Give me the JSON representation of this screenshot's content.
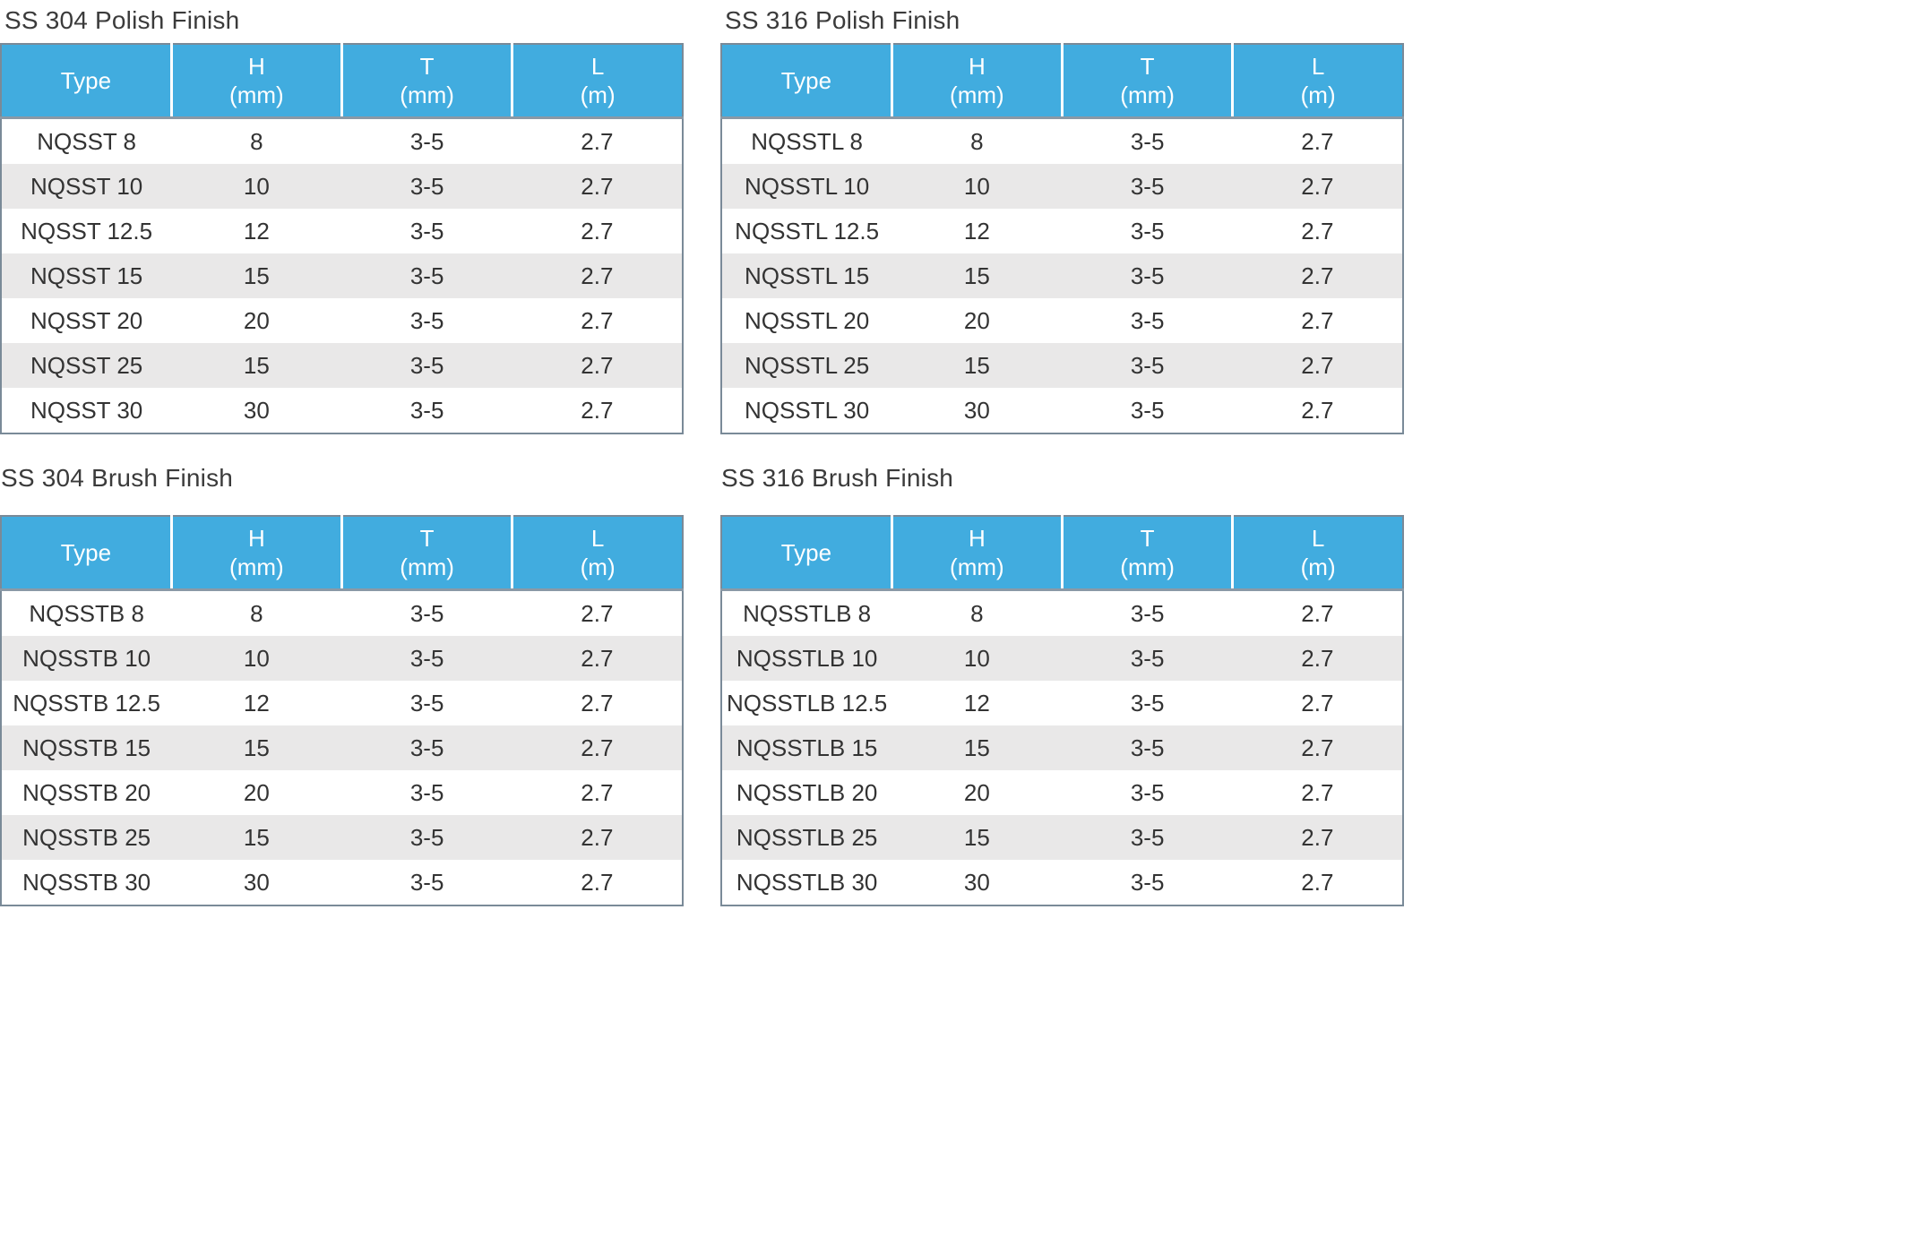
{
  "columns": {
    "type": "Type",
    "h": "H",
    "h_unit": "(mm)",
    "t": "T",
    "t_unit": "(mm)",
    "l": "L",
    "l_unit": "(m)"
  },
  "colors": {
    "header_bg": "#41acdf",
    "stripe": "#e9e8e8",
    "border": "#7a8a98"
  },
  "tables": [
    {
      "title": "SS 304 Polish Finish",
      "rows": [
        [
          "NQSST 8",
          "8",
          "3-5",
          "2.7"
        ],
        [
          "NQSST 10",
          "10",
          "3-5",
          "2.7"
        ],
        [
          "NQSST 12.5",
          "12",
          "3-5",
          "2.7"
        ],
        [
          "NQSST 15",
          "15",
          "3-5",
          "2.7"
        ],
        [
          "NQSST 20",
          "20",
          "3-5",
          "2.7"
        ],
        [
          "NQSST 25",
          "15",
          "3-5",
          "2.7"
        ],
        [
          "NQSST 30",
          "30",
          "3-5",
          "2.7"
        ]
      ]
    },
    {
      "title": "SS 316 Polish Finish",
      "rows": [
        [
          "NQSSTL 8",
          "8",
          "3-5",
          "2.7"
        ],
        [
          "NQSSTL 10",
          "10",
          "3-5",
          "2.7"
        ],
        [
          "NQSSTL 12.5",
          "12",
          "3-5",
          "2.7"
        ],
        [
          "NQSSTL 15",
          "15",
          "3-5",
          "2.7"
        ],
        [
          "NQSSTL 20",
          "20",
          "3-5",
          "2.7"
        ],
        [
          "NQSSTL 25",
          "15",
          "3-5",
          "2.7"
        ],
        [
          "NQSSTL 30",
          "30",
          "3-5",
          "2.7"
        ]
      ]
    },
    {
      "title": "SS 304 Brush Finish",
      "rows": [
        [
          "NQSSTB 8",
          "8",
          "3-5",
          "2.7"
        ],
        [
          "NQSSTB 10",
          "10",
          "3-5",
          "2.7"
        ],
        [
          "NQSSTB 12.5",
          "12",
          "3-5",
          "2.7"
        ],
        [
          "NQSSTB 15",
          "15",
          "3-5",
          "2.7"
        ],
        [
          "NQSSTB 20",
          "20",
          "3-5",
          "2.7"
        ],
        [
          "NQSSTB 25",
          "15",
          "3-5",
          "2.7"
        ],
        [
          "NQSSTB 30",
          "30",
          "3-5",
          "2.7"
        ]
      ]
    },
    {
      "title": "SS 316 Brush Finish",
      "rows": [
        [
          "NQSSTLB 8",
          "8",
          "3-5",
          "2.7"
        ],
        [
          "NQSSTLB 10",
          "10",
          "3-5",
          "2.7"
        ],
        [
          "NQSSTLB 12.5",
          "12",
          "3-5",
          "2.7"
        ],
        [
          "NQSSTLB 15",
          "15",
          "3-5",
          "2.7"
        ],
        [
          "NQSSTLB 20",
          "20",
          "3-5",
          "2.7"
        ],
        [
          "NQSSTLB 25",
          "15",
          "3-5",
          "2.7"
        ],
        [
          "NQSSTLB 30",
          "30",
          "3-5",
          "2.7"
        ]
      ]
    }
  ]
}
